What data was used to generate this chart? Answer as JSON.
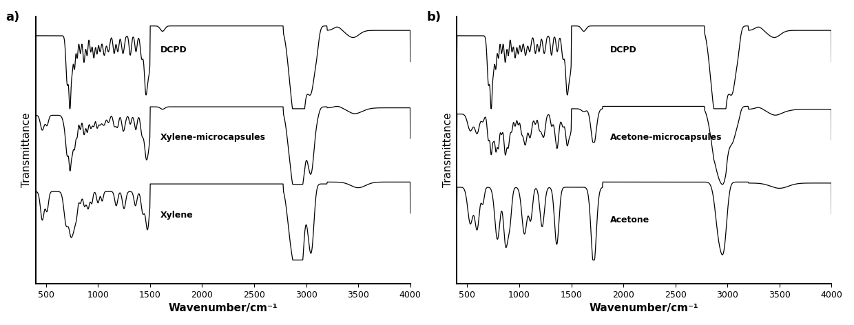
{
  "xlim": [
    400,
    4000
  ],
  "xlabel": "Wavenumber/cm⁻¹",
  "ylabel_a": "Transmittance",
  "ylabel_b": "Transmittance",
  "panel_a_label": "a)",
  "panel_b_label": "b)",
  "panel_a_traces": [
    "DCPD",
    "Xylene-microcapsules",
    "Xylene"
  ],
  "panel_b_traces": [
    "DCPD",
    "Acetone-microcapsules",
    "Acetone"
  ],
  "xticks": [
    500,
    1000,
    1500,
    2000,
    2500,
    3000,
    3500,
    4000
  ],
  "line_color": "#000000",
  "bg_color": "#ffffff",
  "font_size_label": 11,
  "font_size_tick": 9,
  "font_size_annotation": 9,
  "font_size_panel": 13,
  "linewidth": 0.9
}
